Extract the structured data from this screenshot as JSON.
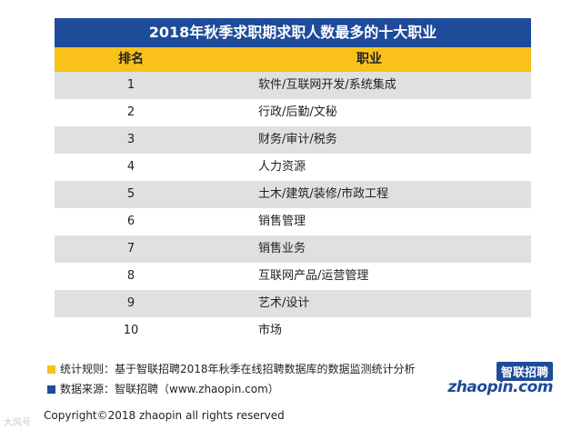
{
  "chart_data": {
    "type": "table",
    "title": "2018年秋季求职期求职人数最多的十大职业",
    "columns": [
      "排名",
      "职业"
    ],
    "rows": [
      {
        "rank": "1",
        "job": "软件/互联网开发/系统集成"
      },
      {
        "rank": "2",
        "job": "行政/后勤/文秘"
      },
      {
        "rank": "3",
        "job": "财务/审计/税务"
      },
      {
        "rank": "4",
        "job": "人力资源"
      },
      {
        "rank": "5",
        "job": "土木/建筑/装修/市政工程"
      },
      {
        "rank": "6",
        "job": "销售管理"
      },
      {
        "rank": "7",
        "job": "销售业务"
      },
      {
        "rank": "8",
        "job": "互联网产品/运营管理"
      },
      {
        "rank": "9",
        "job": "艺术/设计"
      },
      {
        "rank": "10",
        "job": "市场"
      }
    ]
  },
  "notes": {
    "rule": "统计规则：基于智联招聘2018年秋季在线招聘数据库的数据监测统计分析",
    "source": "数据来源：智联招聘（www.zhaopin.com）"
  },
  "logo": {
    "cn": "智联招聘",
    "en": "zhaopin.com"
  },
  "copyright": "Copyright©2018 zhaopin all rights reserved",
  "watermark": "大风号",
  "colors": {
    "title_bg": "#1e4b9a",
    "header_bg": "#f9c21a",
    "stripe": "#e0e0e0",
    "note_yellow": "#f9c21a",
    "note_blue": "#1e4b9a"
  }
}
